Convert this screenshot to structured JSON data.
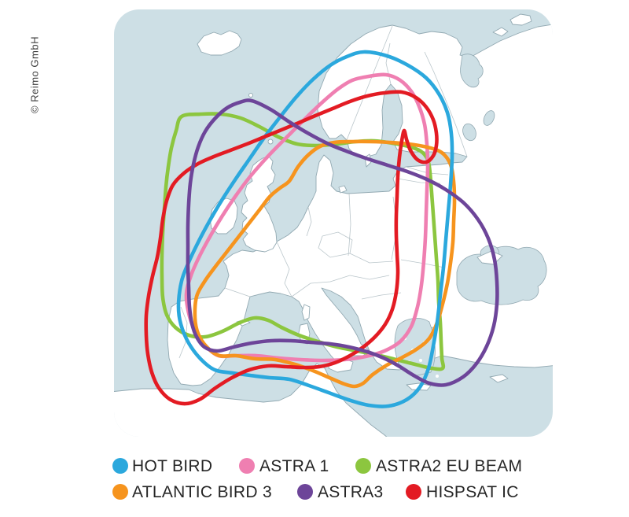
{
  "copyright": "© Reimo GmbH",
  "map": {
    "sea_color": "#cddfe5",
    "land_color": "#ffffff",
    "coast_color": "#92a9b2",
    "border_color": "#b9c5ca"
  },
  "satellites": [
    {
      "name": "HOT BIRD",
      "color": "#2ba8dd",
      "points": [
        [
          463,
          66
        ],
        [
          492,
          71
        ],
        [
          519,
          83
        ],
        [
          542,
          99
        ],
        [
          558,
          119
        ],
        [
          569,
          143
        ],
        [
          574,
          170
        ],
        [
          575,
          200
        ],
        [
          573,
          235
        ],
        [
          570,
          270
        ],
        [
          567,
          305
        ],
        [
          564,
          340
        ],
        [
          560,
          375
        ],
        [
          556,
          410
        ],
        [
          551,
          440
        ],
        [
          545,
          468
        ],
        [
          534,
          492
        ],
        [
          517,
          508
        ],
        [
          494,
          516
        ],
        [
          469,
          515
        ],
        [
          443,
          508
        ],
        [
          418,
          499
        ],
        [
          393,
          490
        ],
        [
          368,
          482
        ],
        [
          343,
          480
        ],
        [
          318,
          477
        ],
        [
          296,
          474
        ],
        [
          273,
          470
        ],
        [
          255,
          456
        ],
        [
          240,
          436
        ],
        [
          230,
          412
        ],
        [
          227,
          388
        ],
        [
          231,
          357
        ],
        [
          241,
          331
        ],
        [
          253,
          306
        ],
        [
          267,
          280
        ],
        [
          283,
          253
        ],
        [
          300,
          227
        ],
        [
          318,
          201
        ],
        [
          336,
          175
        ],
        [
          356,
          149
        ],
        [
          377,
          123
        ],
        [
          398,
          101
        ],
        [
          420,
          83
        ],
        [
          441,
          72
        ]
      ]
    },
    {
      "name": "ASTRA 1",
      "color": "#ef7fb1",
      "points": [
        [
          469,
          97
        ],
        [
          491,
          95
        ],
        [
          509,
          102
        ],
        [
          523,
          116
        ],
        [
          533,
          135
        ],
        [
          540,
          158
        ],
        [
          543,
          184
        ],
        [
          544,
          212
        ],
        [
          543,
          242
        ],
        [
          542,
          272
        ],
        [
          541,
          302
        ],
        [
          539,
          332
        ],
        [
          536,
          362
        ],
        [
          531,
          390
        ],
        [
          523,
          415
        ],
        [
          509,
          434
        ],
        [
          489,
          446
        ],
        [
          465,
          453
        ],
        [
          438,
          457
        ],
        [
          410,
          458
        ],
        [
          382,
          457
        ],
        [
          354,
          455
        ],
        [
          326,
          452
        ],
        [
          299,
          452
        ],
        [
          278,
          452
        ],
        [
          262,
          440
        ],
        [
          250,
          424
        ],
        [
          241,
          402
        ],
        [
          237,
          374
        ],
        [
          243,
          350
        ],
        [
          254,
          325
        ],
        [
          268,
          299
        ],
        [
          283,
          274
        ],
        [
          299,
          250
        ],
        [
          316,
          227
        ],
        [
          334,
          206
        ],
        [
          352,
          187
        ],
        [
          371,
          168
        ],
        [
          391,
          148
        ],
        [
          411,
          129
        ],
        [
          430,
          113
        ],
        [
          448,
          102
        ]
      ]
    },
    {
      "name": "ASTRA2 EU BEAM",
      "color": "#8cc63f",
      "points": [
        [
          231,
          148
        ],
        [
          256,
          145
        ],
        [
          281,
          145
        ],
        [
          306,
          150
        ],
        [
          330,
          161
        ],
        [
          354,
          174
        ],
        [
          378,
          183
        ],
        [
          403,
          185
        ],
        [
          428,
          183
        ],
        [
          452,
          180
        ],
        [
          476,
          179
        ],
        [
          499,
          182
        ],
        [
          519,
          186
        ],
        [
          535,
          192
        ],
        [
          544,
          203
        ],
        [
          547,
          220
        ],
        [
          549,
          245
        ],
        [
          551,
          272
        ],
        [
          553,
          300
        ],
        [
          555,
          328
        ],
        [
          557,
          356
        ],
        [
          558,
          384
        ],
        [
          560,
          410
        ],
        [
          561,
          434
        ],
        [
          562,
          455
        ],
        [
          563,
          468
        ],
        [
          549,
          468
        ],
        [
          528,
          463
        ],
        [
          504,
          457
        ],
        [
          479,
          451
        ],
        [
          454,
          446
        ],
        [
          429,
          441
        ],
        [
          404,
          434
        ],
        [
          380,
          426
        ],
        [
          358,
          416
        ],
        [
          341,
          407
        ],
        [
          324,
          404
        ],
        [
          305,
          410
        ],
        [
          283,
          421
        ],
        [
          261,
          428
        ],
        [
          240,
          426
        ],
        [
          223,
          416
        ],
        [
          212,
          400
        ],
        [
          207,
          378
        ],
        [
          206,
          352
        ],
        [
          206,
          324
        ],
        [
          207,
          295
        ],
        [
          209,
          266
        ],
        [
          211,
          238
        ],
        [
          214,
          212
        ],
        [
          218,
          188
        ],
        [
          224,
          166
        ]
      ]
    },
    {
      "name": "ATLANTIC BIRD 3",
      "color": "#f6941e",
      "points": [
        [
          368,
          230
        ],
        [
          379,
          212
        ],
        [
          392,
          197
        ],
        [
          407,
          186
        ],
        [
          425,
          181
        ],
        [
          448,
          180
        ],
        [
          472,
          180
        ],
        [
          496,
          181
        ],
        [
          520,
          183
        ],
        [
          543,
          187
        ],
        [
          562,
          194
        ],
        [
          573,
          209
        ],
        [
          577,
          231
        ],
        [
          578,
          256
        ],
        [
          577,
          282
        ],
        [
          576,
          308
        ],
        [
          573,
          334
        ],
        [
          569,
          360
        ],
        [
          563,
          386
        ],
        [
          556,
          410
        ],
        [
          546,
          430
        ],
        [
          531,
          443
        ],
        [
          512,
          454
        ],
        [
          492,
          464
        ],
        [
          474,
          476
        ],
        [
          462,
          487
        ],
        [
          451,
          491
        ],
        [
          438,
          488
        ],
        [
          419,
          480
        ],
        [
          398,
          471
        ],
        [
          375,
          463
        ],
        [
          350,
          457
        ],
        [
          325,
          456
        ],
        [
          300,
          452
        ],
        [
          279,
          452
        ],
        [
          263,
          441
        ],
        [
          252,
          424
        ],
        [
          248,
          404
        ],
        [
          250,
          377
        ],
        [
          260,
          358
        ],
        [
          273,
          340
        ],
        [
          287,
          322
        ],
        [
          301,
          304
        ],
        [
          315,
          286
        ],
        [
          329,
          268
        ],
        [
          343,
          250
        ],
        [
          356,
          239
        ]
      ]
    },
    {
      "name": "ASTRA3",
      "color": "#6d4599",
      "points": [
        [
          320,
          128
        ],
        [
          344,
          139
        ],
        [
          368,
          155
        ],
        [
          393,
          170
        ],
        [
          418,
          183
        ],
        [
          443,
          193
        ],
        [
          468,
          202
        ],
        [
          493,
          210
        ],
        [
          518,
          218
        ],
        [
          543,
          228
        ],
        [
          567,
          241
        ],
        [
          590,
          258
        ],
        [
          608,
          279
        ],
        [
          621,
          303
        ],
        [
          629,
          330
        ],
        [
          632,
          358
        ],
        [
          632,
          386
        ],
        [
          628,
          414
        ],
        [
          619,
          440
        ],
        [
          606,
          462
        ],
        [
          589,
          479
        ],
        [
          567,
          489
        ],
        [
          546,
          487
        ],
        [
          526,
          477
        ],
        [
          507,
          465
        ],
        [
          488,
          455
        ],
        [
          467,
          447
        ],
        [
          444,
          441
        ],
        [
          420,
          437
        ],
        [
          395,
          435
        ],
        [
          370,
          433
        ],
        [
          345,
          433
        ],
        [
          320,
          436
        ],
        [
          297,
          441
        ],
        [
          276,
          446
        ],
        [
          260,
          441
        ],
        [
          250,
          428
        ],
        [
          244,
          411
        ],
        [
          241,
          390
        ],
        [
          240,
          366
        ],
        [
          239,
          340
        ],
        [
          239,
          313
        ],
        [
          239,
          286
        ],
        [
          240,
          259
        ],
        [
          242,
          233
        ],
        [
          246,
          209
        ],
        [
          252,
          187
        ],
        [
          261,
          167
        ],
        [
          274,
          150
        ],
        [
          289,
          137
        ],
        [
          305,
          130
        ]
      ]
    },
    {
      "name": "HISPSAT IC",
      "color": "#e31b23",
      "points": [
        [
          489,
          118
        ],
        [
          511,
          117
        ],
        [
          529,
          124
        ],
        [
          542,
          136
        ],
        [
          551,
          152
        ],
        [
          555,
          169
        ],
        [
          555,
          185
        ],
        [
          551,
          198
        ],
        [
          542,
          206
        ],
        [
          531,
          203
        ],
        [
          522,
          191
        ],
        [
          517,
          177
        ],
        [
          514,
          166
        ],
        [
          511,
          179
        ],
        [
          508,
          200
        ],
        [
          506,
          224
        ],
        [
          505,
          249
        ],
        [
          504,
          274
        ],
        [
          504,
          299
        ],
        [
          505,
          323
        ],
        [
          506,
          347
        ],
        [
          504,
          371
        ],
        [
          499,
          393
        ],
        [
          490,
          412
        ],
        [
          477,
          428
        ],
        [
          462,
          441
        ],
        [
          445,
          452
        ],
        [
          426,
          461
        ],
        [
          406,
          466
        ],
        [
          385,
          467
        ],
        [
          364,
          466
        ],
        [
          341,
          465
        ],
        [
          317,
          470
        ],
        [
          295,
          480
        ],
        [
          274,
          493
        ],
        [
          255,
          507
        ],
        [
          236,
          513
        ],
        [
          217,
          508
        ],
        [
          202,
          493
        ],
        [
          193,
          473
        ],
        [
          188,
          450
        ],
        [
          186,
          426
        ],
        [
          186,
          401
        ],
        [
          189,
          376
        ],
        [
          194,
          351
        ],
        [
          200,
          327
        ],
        [
          204,
          303
        ],
        [
          207,
          279
        ],
        [
          212,
          255
        ],
        [
          220,
          235
        ],
        [
          234,
          220
        ],
        [
          252,
          208
        ],
        [
          272,
          199
        ],
        [
          293,
          191
        ],
        [
          314,
          183
        ],
        [
          336,
          174
        ],
        [
          358,
          165
        ],
        [
          380,
          156
        ],
        [
          401,
          147
        ],
        [
          423,
          138
        ],
        [
          445,
          129
        ],
        [
          467,
          122
        ]
      ]
    }
  ],
  "legend": {
    "rows": [
      {
        "items": [
          0,
          1,
          2
        ]
      },
      {
        "items": [
          3,
          4,
          5
        ]
      }
    ]
  }
}
